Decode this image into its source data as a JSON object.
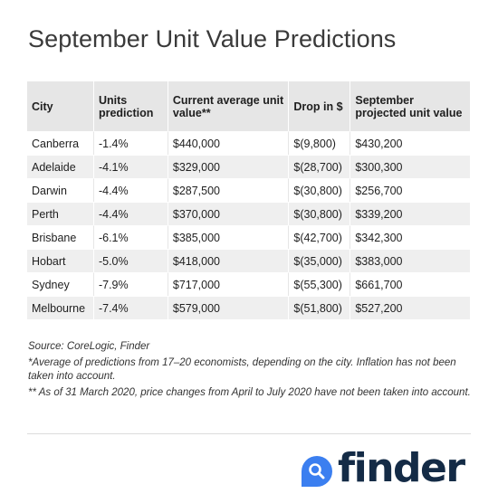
{
  "title": "September Unit Value Predictions",
  "table": {
    "headers": [
      "City",
      "Units prediction",
      "Current average unit value**",
      "Drop in $",
      "September projected unit value"
    ],
    "rows": [
      [
        "Canberra",
        "-1.4%",
        "$440,000",
        "$(9,800)",
        "$430,200"
      ],
      [
        "Adelaide",
        "-4.1%",
        "$329,000",
        "$(28,700)",
        "$300,300"
      ],
      [
        "Darwin",
        "-4.4%",
        "$287,500",
        "$(30,800)",
        "$256,700"
      ],
      [
        "Perth",
        "-4.4%",
        "$370,000",
        "$(30,800)",
        "$339,200"
      ],
      [
        "Brisbane",
        "-6.1%",
        "$385,000",
        "$(42,700)",
        "$342,300"
      ],
      [
        "Hobart",
        "-5.0%",
        "$418,000",
        "$(35,000)",
        "$383,000"
      ],
      [
        "Sydney",
        "-7.9%",
        "$717,000",
        "$(55,300)",
        "$661,700"
      ],
      [
        "Melbourne",
        "-7.4%",
        "$579,000",
        "$(51,800)",
        "$527,200"
      ]
    ]
  },
  "notes": {
    "source": "Source: CoreLogic, Finder",
    "note1": "*Average of predictions from 17–20 economists, depending on the city. Inflation has not been taken into account.",
    "note2": "** As of 31 March 2020, price changes from April to July 2020 have not been taken into account."
  },
  "logo": {
    "text": "finder",
    "icon": "search-magnifier-icon",
    "badge_color": "#3b7ff0",
    "text_color": "#142b46"
  }
}
